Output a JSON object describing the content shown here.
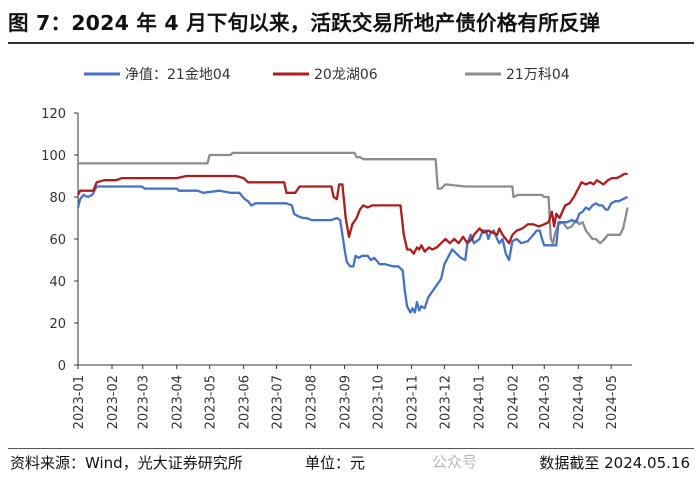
{
  "figure": {
    "title": "图 7：2024 年 4 月下旬以来，活跃交易所地产债价格有所反弹",
    "source": "资料来源：Wind，光大证券研究所",
    "unit": "单位：元",
    "watermark": "公众号",
    "date_note": "数据截至 2024.05.16"
  },
  "chart_data": {
    "type": "line",
    "title": "",
    "xlabel": "",
    "ylabel": "",
    "ylim": [
      0,
      120
    ],
    "yticks": [
      0,
      20,
      40,
      60,
      80,
      100,
      120
    ],
    "xlim": [
      "2023-01-01",
      "2024-05-20"
    ],
    "xticks": [
      "2023-01",
      "2023-02",
      "2023-03",
      "2023-04",
      "2023-05",
      "2023-06",
      "2023-07",
      "2023-08",
      "2023-09",
      "2023-10",
      "2023-11",
      "2023-12",
      "2024-01",
      "2024-02",
      "2024-03",
      "2024-04",
      "2024-05"
    ],
    "grid": false,
    "legend_position": "top",
    "series": [
      {
        "name": "净值：21金地04",
        "color": "#4472c4",
        "points": [
          [
            "2023-01-01",
            75
          ],
          [
            "2023-01-03",
            79
          ],
          [
            "2023-01-06",
            81
          ],
          [
            "2023-01-10",
            80
          ],
          [
            "2023-01-14",
            81
          ],
          [
            "2023-01-18",
            85
          ],
          [
            "2023-01-25",
            85
          ],
          [
            "2023-02-10",
            85
          ],
          [
            "2023-02-28",
            85
          ],
          [
            "2023-03-03",
            84
          ],
          [
            "2023-03-20",
            84
          ],
          [
            "2023-04-01",
            84
          ],
          [
            "2023-04-03",
            83
          ],
          [
            "2023-04-20",
            83
          ],
          [
            "2023-04-25",
            82
          ],
          [
            "2023-05-10",
            83
          ],
          [
            "2023-05-20",
            82
          ],
          [
            "2023-05-28",
            82
          ],
          [
            "2023-06-02",
            79
          ],
          [
            "2023-06-05",
            78
          ],
          [
            "2023-06-08",
            76
          ],
          [
            "2023-06-12",
            77
          ],
          [
            "2023-07-10",
            77
          ],
          [
            "2023-07-15",
            76
          ],
          [
            "2023-07-17",
            72
          ],
          [
            "2023-07-20",
            71
          ],
          [
            "2023-07-25",
            70
          ],
          [
            "2023-07-28",
            70
          ],
          [
            "2023-08-02",
            69
          ],
          [
            "2023-08-20",
            69
          ],
          [
            "2023-08-25",
            70
          ],
          [
            "2023-08-28",
            69
          ],
          [
            "2023-09-01",
            55
          ],
          [
            "2023-09-03",
            49
          ],
          [
            "2023-09-06",
            47
          ],
          [
            "2023-09-09",
            47
          ],
          [
            "2023-09-11",
            52
          ],
          [
            "2023-09-14",
            51
          ],
          [
            "2023-09-17",
            52
          ],
          [
            "2023-09-22",
            52
          ],
          [
            "2023-09-25",
            50
          ],
          [
            "2023-09-28",
            51
          ],
          [
            "2023-10-03",
            48
          ],
          [
            "2023-10-08",
            48
          ],
          [
            "2023-10-15",
            47
          ],
          [
            "2023-10-20",
            47
          ],
          [
            "2023-10-24",
            45
          ],
          [
            "2023-10-26",
            35
          ],
          [
            "2023-10-28",
            28
          ],
          [
            "2023-10-31",
            25
          ],
          [
            "2023-11-02",
            27
          ],
          [
            "2023-11-04",
            25
          ],
          [
            "2023-11-06",
            30
          ],
          [
            "2023-11-08",
            26
          ],
          [
            "2023-11-10",
            28
          ],
          [
            "2023-11-13",
            27
          ],
          [
            "2023-11-16",
            32
          ],
          [
            "2023-11-20",
            35
          ],
          [
            "2023-11-24",
            38
          ],
          [
            "2023-11-28",
            41
          ],
          [
            "2023-12-01",
            48
          ],
          [
            "2023-12-05",
            52
          ],
          [
            "2023-12-08",
            55
          ],
          [
            "2023-12-12",
            53
          ],
          [
            "2023-12-16",
            51
          ],
          [
            "2023-12-20",
            50
          ],
          [
            "2023-12-22",
            58
          ],
          [
            "2023-12-25",
            62
          ],
          [
            "2023-12-28",
            58
          ],
          [
            "2024-01-02",
            60
          ],
          [
            "2024-01-05",
            64
          ],
          [
            "2024-01-08",
            64
          ],
          [
            "2024-01-10",
            60
          ],
          [
            "2024-01-12",
            63
          ],
          [
            "2024-01-15",
            64
          ],
          [
            "2024-01-18",
            60
          ],
          [
            "2024-01-20",
            58
          ],
          [
            "2024-01-23",
            60
          ],
          [
            "2024-01-26",
            53
          ],
          [
            "2024-01-29",
            50
          ],
          [
            "2024-02-01",
            59
          ],
          [
            "2024-02-05",
            60
          ],
          [
            "2024-02-09",
            58
          ],
          [
            "2024-02-15",
            59
          ],
          [
            "2024-02-20",
            62
          ],
          [
            "2024-02-23",
            64
          ],
          [
            "2024-02-26",
            64
          ],
          [
            "2024-02-28",
            60
          ],
          [
            "2024-03-01",
            57
          ],
          [
            "2024-03-08",
            57
          ],
          [
            "2024-03-12",
            57
          ],
          [
            "2024-03-14",
            68
          ],
          [
            "2024-03-18",
            68
          ],
          [
            "2024-03-22",
            68
          ],
          [
            "2024-03-26",
            69
          ],
          [
            "2024-03-30",
            68
          ],
          [
            "2024-04-02",
            72
          ],
          [
            "2024-04-05",
            73
          ],
          [
            "2024-04-08",
            75
          ],
          [
            "2024-04-11",
            74
          ],
          [
            "2024-04-14",
            76
          ],
          [
            "2024-04-17",
            77
          ],
          [
            "2024-04-20",
            76
          ],
          [
            "2024-04-23",
            76
          ],
          [
            "2024-04-26",
            74
          ],
          [
            "2024-04-28",
            74
          ],
          [
            "2024-05-01",
            77
          ],
          [
            "2024-05-05",
            78
          ],
          [
            "2024-05-08",
            78
          ],
          [
            "2024-05-12",
            79
          ],
          [
            "2024-05-16",
            80
          ]
        ]
      },
      {
        "name": "20龙湖06",
        "color": "#b01c1c",
        "points": [
          [
            "2023-01-01",
            81
          ],
          [
            "2023-01-03",
            83
          ],
          [
            "2023-01-15",
            83
          ],
          [
            "2023-01-18",
            87
          ],
          [
            "2023-01-25",
            88
          ],
          [
            "2023-02-05",
            88
          ],
          [
            "2023-02-10",
            89
          ],
          [
            "2023-03-01",
            89
          ],
          [
            "2023-04-01",
            89
          ],
          [
            "2023-04-10",
            90
          ],
          [
            "2023-05-10",
            90
          ],
          [
            "2023-05-25",
            90
          ],
          [
            "2023-06-01",
            89
          ],
          [
            "2023-06-05",
            87
          ],
          [
            "2023-06-20",
            87
          ],
          [
            "2023-07-08",
            87
          ],
          [
            "2023-07-10",
            82
          ],
          [
            "2023-07-18",
            82
          ],
          [
            "2023-07-22",
            85
          ],
          [
            "2023-08-20",
            85
          ],
          [
            "2023-08-22",
            80
          ],
          [
            "2023-08-25",
            79
          ],
          [
            "2023-08-27",
            86
          ],
          [
            "2023-08-30",
            86
          ],
          [
            "2023-09-02",
            70
          ],
          [
            "2023-09-05",
            61
          ],
          [
            "2023-09-08",
            67
          ],
          [
            "2023-09-12",
            70
          ],
          [
            "2023-09-15",
            74
          ],
          [
            "2023-09-18",
            76
          ],
          [
            "2023-09-22",
            75
          ],
          [
            "2023-09-26",
            76
          ],
          [
            "2023-10-05",
            76
          ],
          [
            "2023-10-15",
            76
          ],
          [
            "2023-10-22",
            76
          ],
          [
            "2023-10-25",
            62
          ],
          [
            "2023-10-28",
            55
          ],
          [
            "2023-10-31",
            55
          ],
          [
            "2023-11-03",
            53
          ],
          [
            "2023-11-06",
            56
          ],
          [
            "2023-11-08",
            55
          ],
          [
            "2023-11-10",
            57
          ],
          [
            "2023-11-13",
            54
          ],
          [
            "2023-11-17",
            56
          ],
          [
            "2023-11-20",
            55
          ],
          [
            "2023-11-24",
            56
          ],
          [
            "2023-11-28",
            58
          ],
          [
            "2023-12-02",
            60
          ],
          [
            "2023-12-06",
            58
          ],
          [
            "2023-12-10",
            60
          ],
          [
            "2023-12-14",
            58
          ],
          [
            "2023-12-18",
            61
          ],
          [
            "2023-12-22",
            58
          ],
          [
            "2023-12-26",
            60
          ],
          [
            "2023-12-28",
            62
          ],
          [
            "2024-01-02",
            65
          ],
          [
            "2024-01-06",
            63
          ],
          [
            "2024-01-10",
            64
          ],
          [
            "2024-01-14",
            63
          ],
          [
            "2024-01-18",
            62
          ],
          [
            "2024-01-20",
            65
          ],
          [
            "2024-01-23",
            62
          ],
          [
            "2024-01-26",
            60
          ],
          [
            "2024-01-29",
            58
          ],
          [
            "2024-02-01",
            62
          ],
          [
            "2024-02-05",
            64
          ],
          [
            "2024-02-10",
            65
          ],
          [
            "2024-02-15",
            67
          ],
          [
            "2024-02-20",
            67
          ],
          [
            "2024-02-25",
            66
          ],
          [
            "2024-03-01",
            67
          ],
          [
            "2024-03-05",
            68
          ],
          [
            "2024-03-08",
            73
          ],
          [
            "2024-03-10",
            66
          ],
          [
            "2024-03-12",
            72
          ],
          [
            "2024-03-15",
            70
          ],
          [
            "2024-03-20",
            76
          ],
          [
            "2024-03-24",
            77
          ],
          [
            "2024-03-28",
            80
          ],
          [
            "2024-04-01",
            84
          ],
          [
            "2024-04-04",
            87
          ],
          [
            "2024-04-08",
            86
          ],
          [
            "2024-04-12",
            87
          ],
          [
            "2024-04-15",
            86
          ],
          [
            "2024-04-18",
            88
          ],
          [
            "2024-04-21",
            87
          ],
          [
            "2024-04-24",
            86
          ],
          [
            "2024-04-28",
            88
          ],
          [
            "2024-05-02",
            89
          ],
          [
            "2024-05-06",
            89
          ],
          [
            "2024-05-10",
            90
          ],
          [
            "2024-05-13",
            91
          ],
          [
            "2024-05-16",
            91
          ]
        ]
      },
      {
        "name": "21万科04",
        "color": "#8c8c8c",
        "points": [
          [
            "2023-01-01",
            96
          ],
          [
            "2023-02-01",
            96
          ],
          [
            "2023-03-01",
            96
          ],
          [
            "2023-04-01",
            96
          ],
          [
            "2023-04-29",
            96
          ],
          [
            "2023-05-01",
            100
          ],
          [
            "2023-05-20",
            100
          ],
          [
            "2023-05-22",
            101
          ],
          [
            "2023-06-30",
            101
          ],
          [
            "2023-08-01",
            101
          ],
          [
            "2023-09-10",
            101
          ],
          [
            "2023-09-12",
            99
          ],
          [
            "2023-09-15",
            99
          ],
          [
            "2023-09-18",
            98
          ],
          [
            "2023-10-20",
            98
          ],
          [
            "2023-11-20",
            98
          ],
          [
            "2023-11-23",
            98
          ],
          [
            "2023-11-25",
            84
          ],
          [
            "2023-11-28",
            84
          ],
          [
            "2023-12-02",
            86
          ],
          [
            "2023-12-20",
            85
          ],
          [
            "2024-01-20",
            85
          ],
          [
            "2024-02-01",
            85
          ],
          [
            "2024-02-02",
            80
          ],
          [
            "2024-02-06",
            81
          ],
          [
            "2024-02-28",
            81
          ],
          [
            "2024-03-01",
            80
          ],
          [
            "2024-03-05",
            80
          ],
          [
            "2024-03-07",
            60
          ],
          [
            "2024-03-09",
            58
          ],
          [
            "2024-03-11",
            63
          ],
          [
            "2024-03-14",
            67
          ],
          [
            "2024-03-18",
            68
          ],
          [
            "2024-03-22",
            65
          ],
          [
            "2024-03-26",
            66
          ],
          [
            "2024-03-30",
            69
          ],
          [
            "2024-04-02",
            67
          ],
          [
            "2024-04-05",
            68
          ],
          [
            "2024-04-08",
            64
          ],
          [
            "2024-04-11",
            62
          ],
          [
            "2024-04-14",
            60
          ],
          [
            "2024-04-17",
            60
          ],
          [
            "2024-04-21",
            58
          ],
          [
            "2024-04-25",
            60
          ],
          [
            "2024-04-28",
            62
          ],
          [
            "2024-05-02",
            62
          ],
          [
            "2024-05-06",
            62
          ],
          [
            "2024-05-09",
            62
          ],
          [
            "2024-05-12",
            65
          ],
          [
            "2024-05-14",
            70
          ],
          [
            "2024-05-16",
            75
          ]
        ]
      }
    ]
  },
  "colors": {
    "axis": "#333333",
    "text": "#333333"
  }
}
